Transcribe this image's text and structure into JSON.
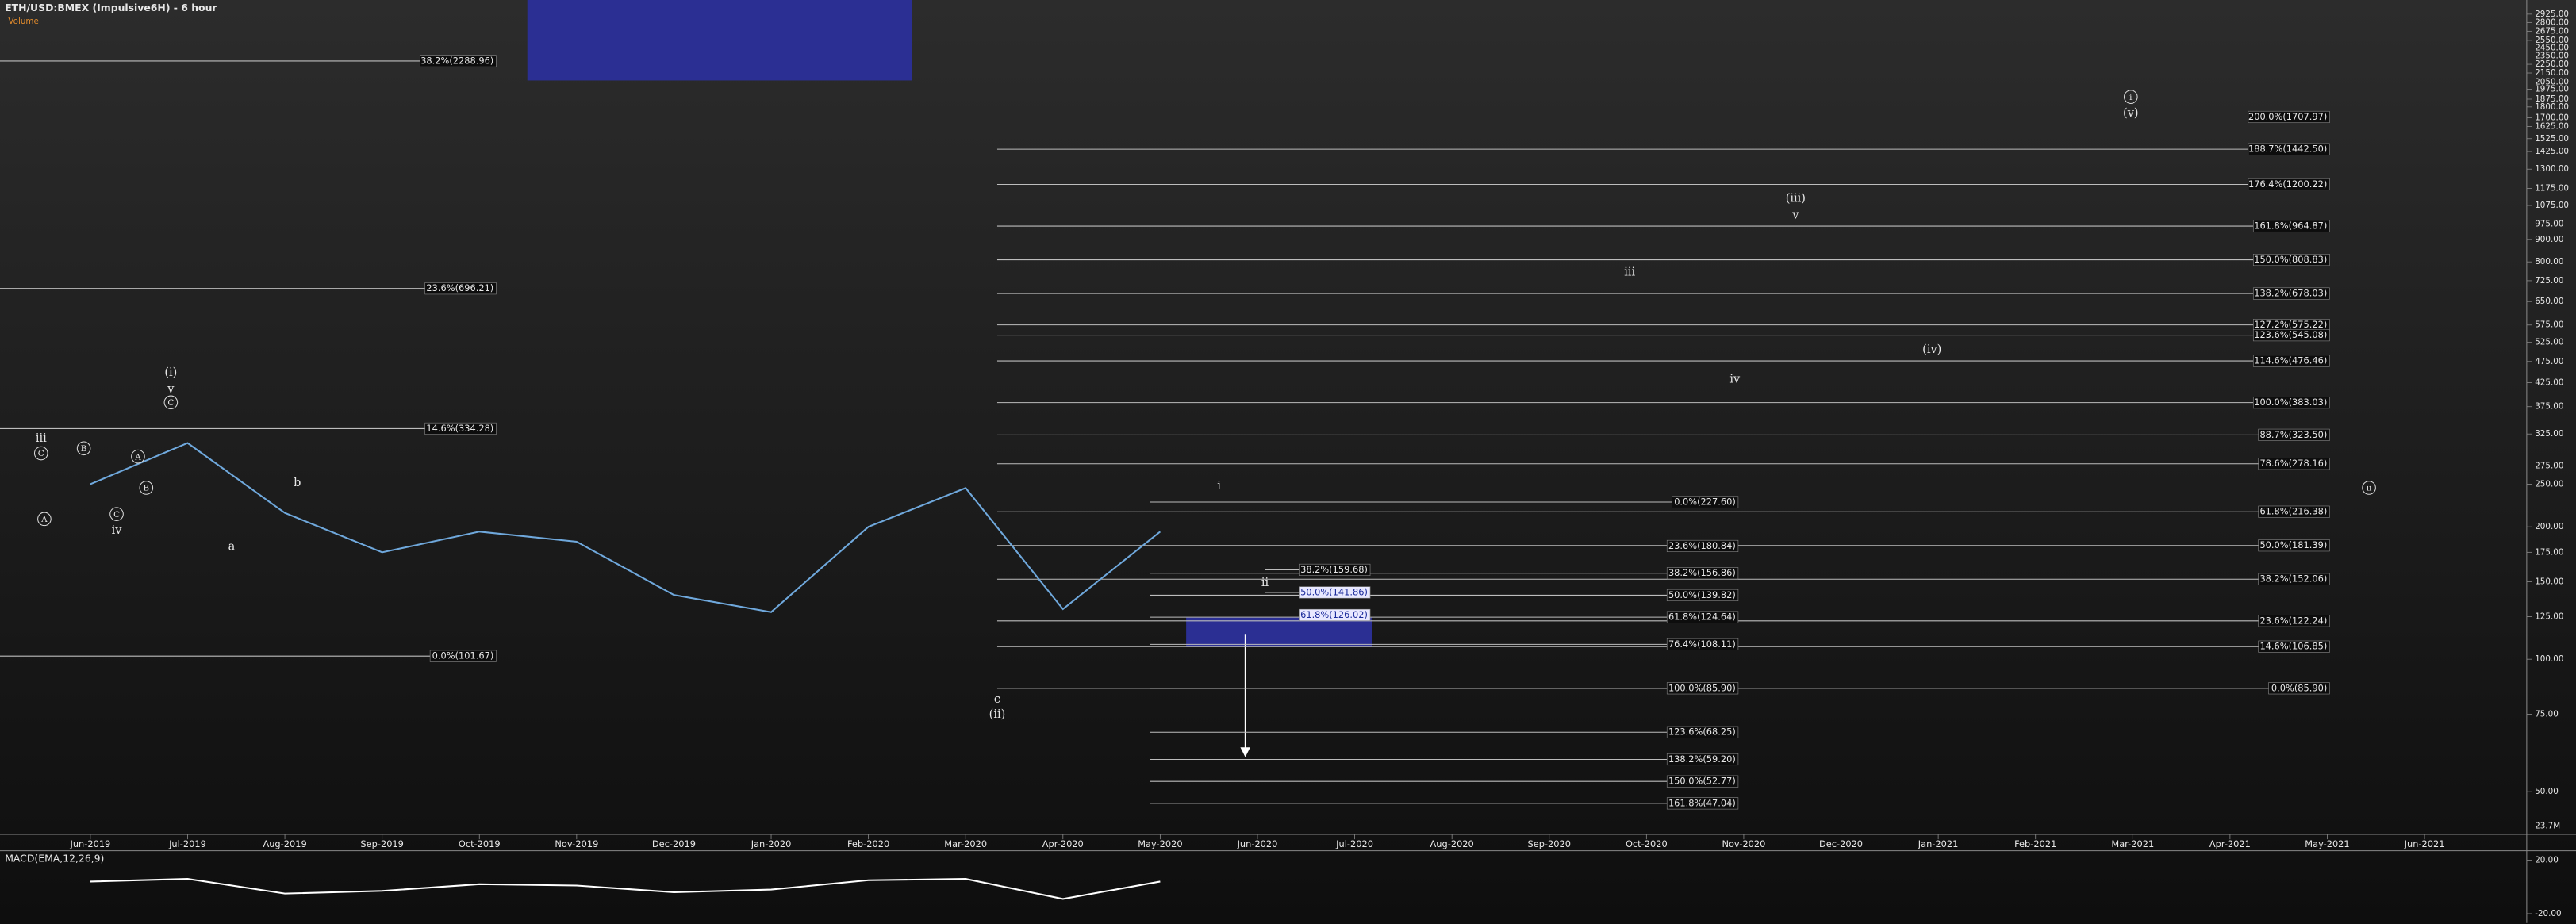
{
  "chart_data": [
    {
      "type": "line",
      "title": "ETH/USD:BMEX (Impulsive6H) - 6 hour",
      "subtitle": "Volume",
      "categories": [
        "Jun-2019",
        "Jul-2019",
        "Aug-2019",
        "Sep-2019",
        "Oct-2019",
        "Nov-2019",
        "Dec-2019",
        "Jan-2020",
        "Feb-2020",
        "Mar-2020",
        "Apr-2020",
        "May-2020",
        "Jun-2020",
        "Jul-2020",
        "Aug-2020",
        "Sep-2020",
        "Oct-2020",
        "Nov-2020",
        "Dec-2020",
        "Jan-2021",
        "Feb-2021",
        "Mar-2021",
        "Apr-2021",
        "May-2021",
        "Jun-2021"
      ],
      "series": [
        {
          "color": "#6fa8dc",
          "values": [
            250,
            310,
            215,
            175,
            195,
            185,
            140,
            128,
            200,
            245,
            130,
            195,
            null,
            null,
            null,
            null,
            null,
            null,
            null,
            null,
            null,
            null,
            null,
            null,
            null
          ]
        }
      ],
      "log_scale": true,
      "ylim": [
        40,
        3150
      ],
      "yticks": [
        {
          "value": 2925,
          "label": "2925.00"
        },
        {
          "value": 2800,
          "label": "2800.00"
        },
        {
          "value": 2675,
          "label": "2675.00"
        },
        {
          "value": 2550,
          "label": "2550.00"
        },
        {
          "value": 2450,
          "label": "2450.00"
        },
        {
          "value": 2350,
          "label": "2350.00"
        },
        {
          "value": 2250,
          "label": "2250.00"
        },
        {
          "value": 2150,
          "label": "2150.00"
        },
        {
          "value": 2050,
          "label": "2050.00"
        },
        {
          "value": 1975,
          "label": "1975.00"
        },
        {
          "value": 1875,
          "label": "1875.00"
        },
        {
          "value": 1800,
          "label": "1800.00"
        },
        {
          "value": 1700,
          "label": "1700.00"
        },
        {
          "value": 1625,
          "label": "1625.00"
        },
        {
          "value": 1525,
          "label": "1525.00"
        },
        {
          "value": 1425,
          "label": "1425.00"
        },
        {
          "value": 1300,
          "label": "1300.00"
        },
        {
          "value": 1175,
          "label": "1175.00"
        },
        {
          "value": 1075,
          "label": "1075.00"
        },
        {
          "value": 975,
          "label": "975.00"
        },
        {
          "value": 900,
          "label": "900.00"
        },
        {
          "value": 800,
          "label": "800.00"
        },
        {
          "value": 725,
          "label": "725.00"
        },
        {
          "value": 650,
          "label": "650.00"
        },
        {
          "value": 575,
          "label": "575.00"
        },
        {
          "value": 525,
          "label": "525.00"
        },
        {
          "value": 475,
          "label": "475.00"
        },
        {
          "value": 425,
          "label": "425.00"
        },
        {
          "value": 375,
          "label": "375.00"
        },
        {
          "value": 325,
          "label": "325.00"
        },
        {
          "value": 275,
          "label": "275.00"
        },
        {
          "value": 250,
          "label": "250.00"
        },
        {
          "value": 200,
          "label": "200.00"
        },
        {
          "value": 175,
          "label": "175.00"
        },
        {
          "value": 150,
          "label": "150.00"
        },
        {
          "value": 125,
          "label": "125.00"
        },
        {
          "value": 100,
          "label": "100.00"
        },
        {
          "value": 75,
          "label": "75.00"
        },
        {
          "value": 50,
          "label": "50.00"
        }
      ],
      "fib_sets": [
        {
          "levels": [
            {
              "value": 2288.96,
              "label": "38.2%(2288.96)"
            },
            {
              "value": 696.21,
              "label": "23.6%(696.21)"
            },
            {
              "value": 334.28,
              "label": "14.6%(334.28)"
            },
            {
              "value": 101.67,
              "label": "0.0%(101.67)"
            }
          ]
        },
        {
          "levels": [
            {
              "value": 1707.97,
              "label": "200.0%(1707.97)"
            },
            {
              "value": 1442.5,
              "label": "188.7%(1442.50)"
            },
            {
              "value": 1200.22,
              "label": "176.4%(1200.22)"
            },
            {
              "value": 964.87,
              "label": "161.8%(964.87)"
            },
            {
              "value": 808.83,
              "label": "150.0%(808.83)"
            },
            {
              "value": 678.03,
              "label": "138.2%(678.03)"
            },
            {
              "value": 575.22,
              "label": "127.2%(575.22)"
            },
            {
              "value": 545.08,
              "label": "123.6%(545.08)"
            },
            {
              "value": 476.46,
              "label": "114.6%(476.46)"
            },
            {
              "value": 383.03,
              "label": "100.0%(383.03)"
            },
            {
              "value": 323.5,
              "label": "88.7%(323.50)"
            },
            {
              "value": 278.16,
              "label": "78.6%(278.16)"
            },
            {
              "value": 216.38,
              "label": "61.8%(216.38)"
            },
            {
              "value": 181.39,
              "label": "50.0%(181.39)"
            },
            {
              "value": 152.06,
              "label": "38.2%(152.06)"
            },
            {
              "value": 122.24,
              "label": "23.6%(122.24)"
            },
            {
              "value": 106.85,
              "label": "14.6%(106.85)"
            },
            {
              "value": 85.9,
              "label": "0.0%(85.90)"
            }
          ]
        },
        {
          "levels": [
            {
              "value": 227.6,
              "label": "0.0%(227.60)"
            },
            {
              "value": 180.84,
              "label": "23.6%(180.84)"
            },
            {
              "value": 156.86,
              "label": "38.2%(156.86)"
            },
            {
              "value": 139.82,
              "label": "50.0%(139.82)"
            },
            {
              "value": 124.64,
              "label": "61.8%(124.64)"
            },
            {
              "value": 108.11,
              "label": "76.4%(108.11)"
            },
            {
              "value": 85.9,
              "label": "100.0%(85.90)"
            },
            {
              "value": 68.25,
              "label": "123.6%(68.25)"
            },
            {
              "value": 59.2,
              "label": "138.2%(59.20)"
            },
            {
              "value": 52.77,
              "label": "150.0%(52.77)"
            },
            {
              "value": 47.04,
              "label": "161.8%(47.04)"
            }
          ]
        },
        {
          "levels": [
            {
              "value": 159.68,
              "label": "38.2%(159.68)"
            },
            {
              "value": 141.86,
              "label": "50.0%(141.86)",
              "highlighted": true
            },
            {
              "value": 126.02,
              "label": "61.8%(126.02)",
              "highlighted": true
            }
          ]
        }
      ],
      "wave_labels": [
        "iii",
        "iv",
        "(i)",
        "v",
        "a",
        "b",
        "c",
        "(ii)",
        "i",
        "ii",
        "iii",
        "iv",
        "(iii)",
        "v",
        "(iv)",
        "(v)"
      ],
      "circled_labels": [
        "C",
        "A",
        "B",
        "C",
        "A",
        "B",
        "C",
        "i",
        "ii"
      ],
      "volume_label": "23.7M"
    },
    {
      "type": "line",
      "title": "MACD(EMA,12,26,9)",
      "series": [
        {
          "color": "#ffffff",
          "values": [
            4,
            6,
            -5,
            -3,
            2,
            1,
            -4,
            -2,
            5,
            6,
            -9,
            4,
            null,
            null,
            null,
            null,
            null,
            null,
            null,
            null,
            null,
            null,
            null,
            null,
            null
          ]
        }
      ],
      "ylim": [
        -27,
        27
      ],
      "yticks": [
        {
          "value": 20,
          "label": "20.00"
        },
        {
          "value": -20,
          "label": "-20.00"
        }
      ]
    }
  ]
}
